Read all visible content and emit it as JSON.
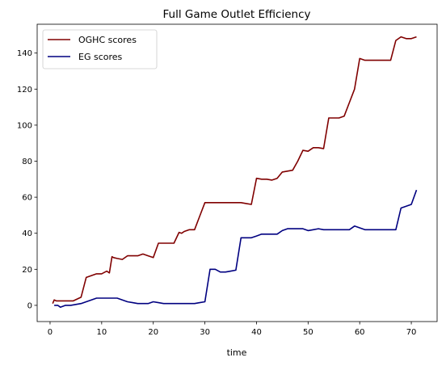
{
  "chart_data": {
    "type": "line",
    "title": "Full Game Outlet Efficiency",
    "xlabel": "time",
    "ylabel": "",
    "xlim": [
      -2.5,
      75
    ],
    "ylim": [
      -9,
      156
    ],
    "xticks": [
      0,
      10,
      20,
      30,
      40,
      50,
      60,
      70
    ],
    "yticks": [
      0,
      20,
      40,
      60,
      80,
      100,
      120,
      140
    ],
    "grid": false,
    "legend_position": "top-left",
    "series": [
      {
        "name": "OGHC scores",
        "color": "#800000",
        "x": [
          0.5,
          0.8,
          1.2,
          2.0,
          3.0,
          4.5,
          6.0,
          7.0,
          8.0,
          9.0,
          10.0,
          11.0,
          11.5,
          12.0,
          12.3,
          13.0,
          14.0,
          15.0,
          16.0,
          17.0,
          18.0,
          18.5,
          19.0,
          20.0,
          21.0,
          21.5,
          22.0,
          23.0,
          24.0,
          25.0,
          25.5,
          26.0,
          27.0,
          28.0,
          29.0,
          30.0,
          31.0,
          33.0,
          35.0,
          37.0,
          38.0,
          39.0,
          40.0,
          41.0,
          42.0,
          43.0,
          44.0,
          45.0,
          46.0,
          47.0,
          48.0,
          49.0,
          50.0,
          51.0,
          52.0,
          53.0,
          54.0,
          55.0,
          56.0,
          57.0,
          58.0,
          59.0,
          60.0,
          61.0,
          62.0,
          63.0,
          64.0,
          65.0,
          66.0,
          67.0,
          68.0,
          69.0,
          70.0,
          71.0
        ],
        "values": [
          1,
          3,
          2.5,
          2.5,
          2.5,
          2.5,
          4.5,
          15.5,
          16.5,
          17.5,
          17.5,
          19,
          18,
          27,
          26.5,
          26,
          25.5,
          27.5,
          27.5,
          27.5,
          28.5,
          28,
          27.5,
          26.5,
          34.5,
          34.5,
          34.5,
          34.5,
          34.5,
          40.5,
          40,
          41,
          42,
          42,
          49.5,
          57,
          57,
          57,
          57,
          57,
          56.5,
          56,
          70.5,
          70,
          70,
          69.5,
          70.5,
          74,
          74.5,
          75,
          80,
          86,
          85.5,
          87.5,
          87.5,
          87,
          104,
          104,
          104,
          105,
          112.5,
          120,
          137,
          136,
          136,
          136,
          136,
          136,
          136,
          147,
          149,
          148,
          148,
          149
        ]
      },
      {
        "name": "EG scores",
        "color": "#000080",
        "x": [
          0.8,
          1.0,
          1.5,
          2.0,
          3.0,
          4.0,
          5.0,
          6.0,
          7.0,
          8.0,
          9.0,
          10.0,
          11.0,
          12.0,
          13.0,
          14.0,
          15.0,
          16.0,
          17.0,
          18.0,
          19.0,
          20.0,
          21.0,
          22.0,
          23.0,
          24.0,
          25.0,
          26.0,
          27.0,
          28.0,
          29.0,
          30.0,
          31.0,
          32.0,
          33.0,
          34.0,
          35.0,
          36.0,
          37.0,
          38.0,
          39.0,
          40.0,
          41.0,
          42.0,
          43.0,
          44.0,
          45.0,
          46.0,
          47.0,
          48.0,
          49.0,
          50.0,
          51.0,
          52.0,
          53.0,
          54.0,
          55.0,
          56.0,
          57.0,
          58.0,
          59.0,
          60.0,
          61.0,
          62.0,
          63.0,
          64.0,
          65.0,
          66.0,
          67.0,
          68.0,
          69.0,
          70.0,
          71.0
        ],
        "values": [
          0,
          0,
          0,
          -1,
          0,
          0,
          0.5,
          1,
          2,
          3,
          4,
          4,
          4,
          4,
          4,
          3,
          2,
          1.5,
          1,
          1,
          1,
          2,
          1.5,
          1,
          1,
          1,
          1,
          1,
          1,
          1,
          1.5,
          2,
          20,
          20,
          18.5,
          18.5,
          19,
          19.5,
          37.5,
          37.5,
          37.5,
          38.5,
          39.5,
          39.5,
          39.5,
          39.5,
          41.5,
          42.5,
          42.5,
          42.5,
          42.5,
          41.5,
          42,
          42.5,
          42,
          42,
          42,
          42,
          42,
          42,
          44,
          43,
          42,
          42,
          42,
          42,
          42,
          42,
          42,
          54,
          55,
          56,
          64
        ]
      }
    ]
  }
}
